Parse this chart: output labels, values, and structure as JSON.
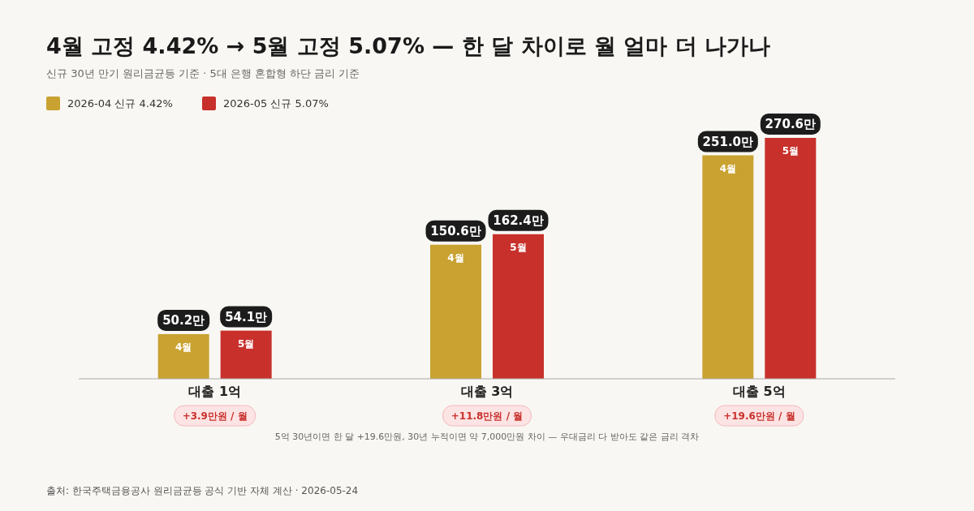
{
  "chart_data": {
    "type": "bar",
    "title": "4월 고정 4.42% → 5월 고정 5.07% — 한 달 차이로 월 얼마 더 나가나",
    "subtitle": "신규 30년 만기 원리금균등 기준 · 5대 은행 혼합형 하단 금리 기준",
    "categories": [
      "대출 1억",
      "대출 3억",
      "대출 5억"
    ],
    "series": [
      {
        "name": "2026-04 신규 4.42%",
        "color": "#c9a232",
        "values": [
          50.2,
          150.6,
          251.0
        ],
        "value_labels": [
          "50.2만",
          "150.6만",
          "251.0만"
        ]
      },
      {
        "name": "2026-05 신규 5.07%",
        "color": "#c8302b",
        "values": [
          54.1,
          162.4,
          270.6
        ],
        "value_labels": [
          "54.1만",
          "162.4만",
          "270.6만"
        ]
      }
    ],
    "legend": "top left",
    "annotations": [
      "4월",
      "5월",
      "4월",
      "5월",
      "4월",
      "5월",
      "+3.9만원 / 월",
      "+11.8만원 / 월",
      "+19.6만원 / 월",
      "5억 30년이면 한 달 +19.6만원, 30년 누적이면 약 7,000만원 차이 — 우대금리 다 받아도 같은 금리 격차",
      "출처: 한국주택금융공사 원리금균등 공식 기반 자체 계산 · 2026-05-24"
    ]
  }
}
